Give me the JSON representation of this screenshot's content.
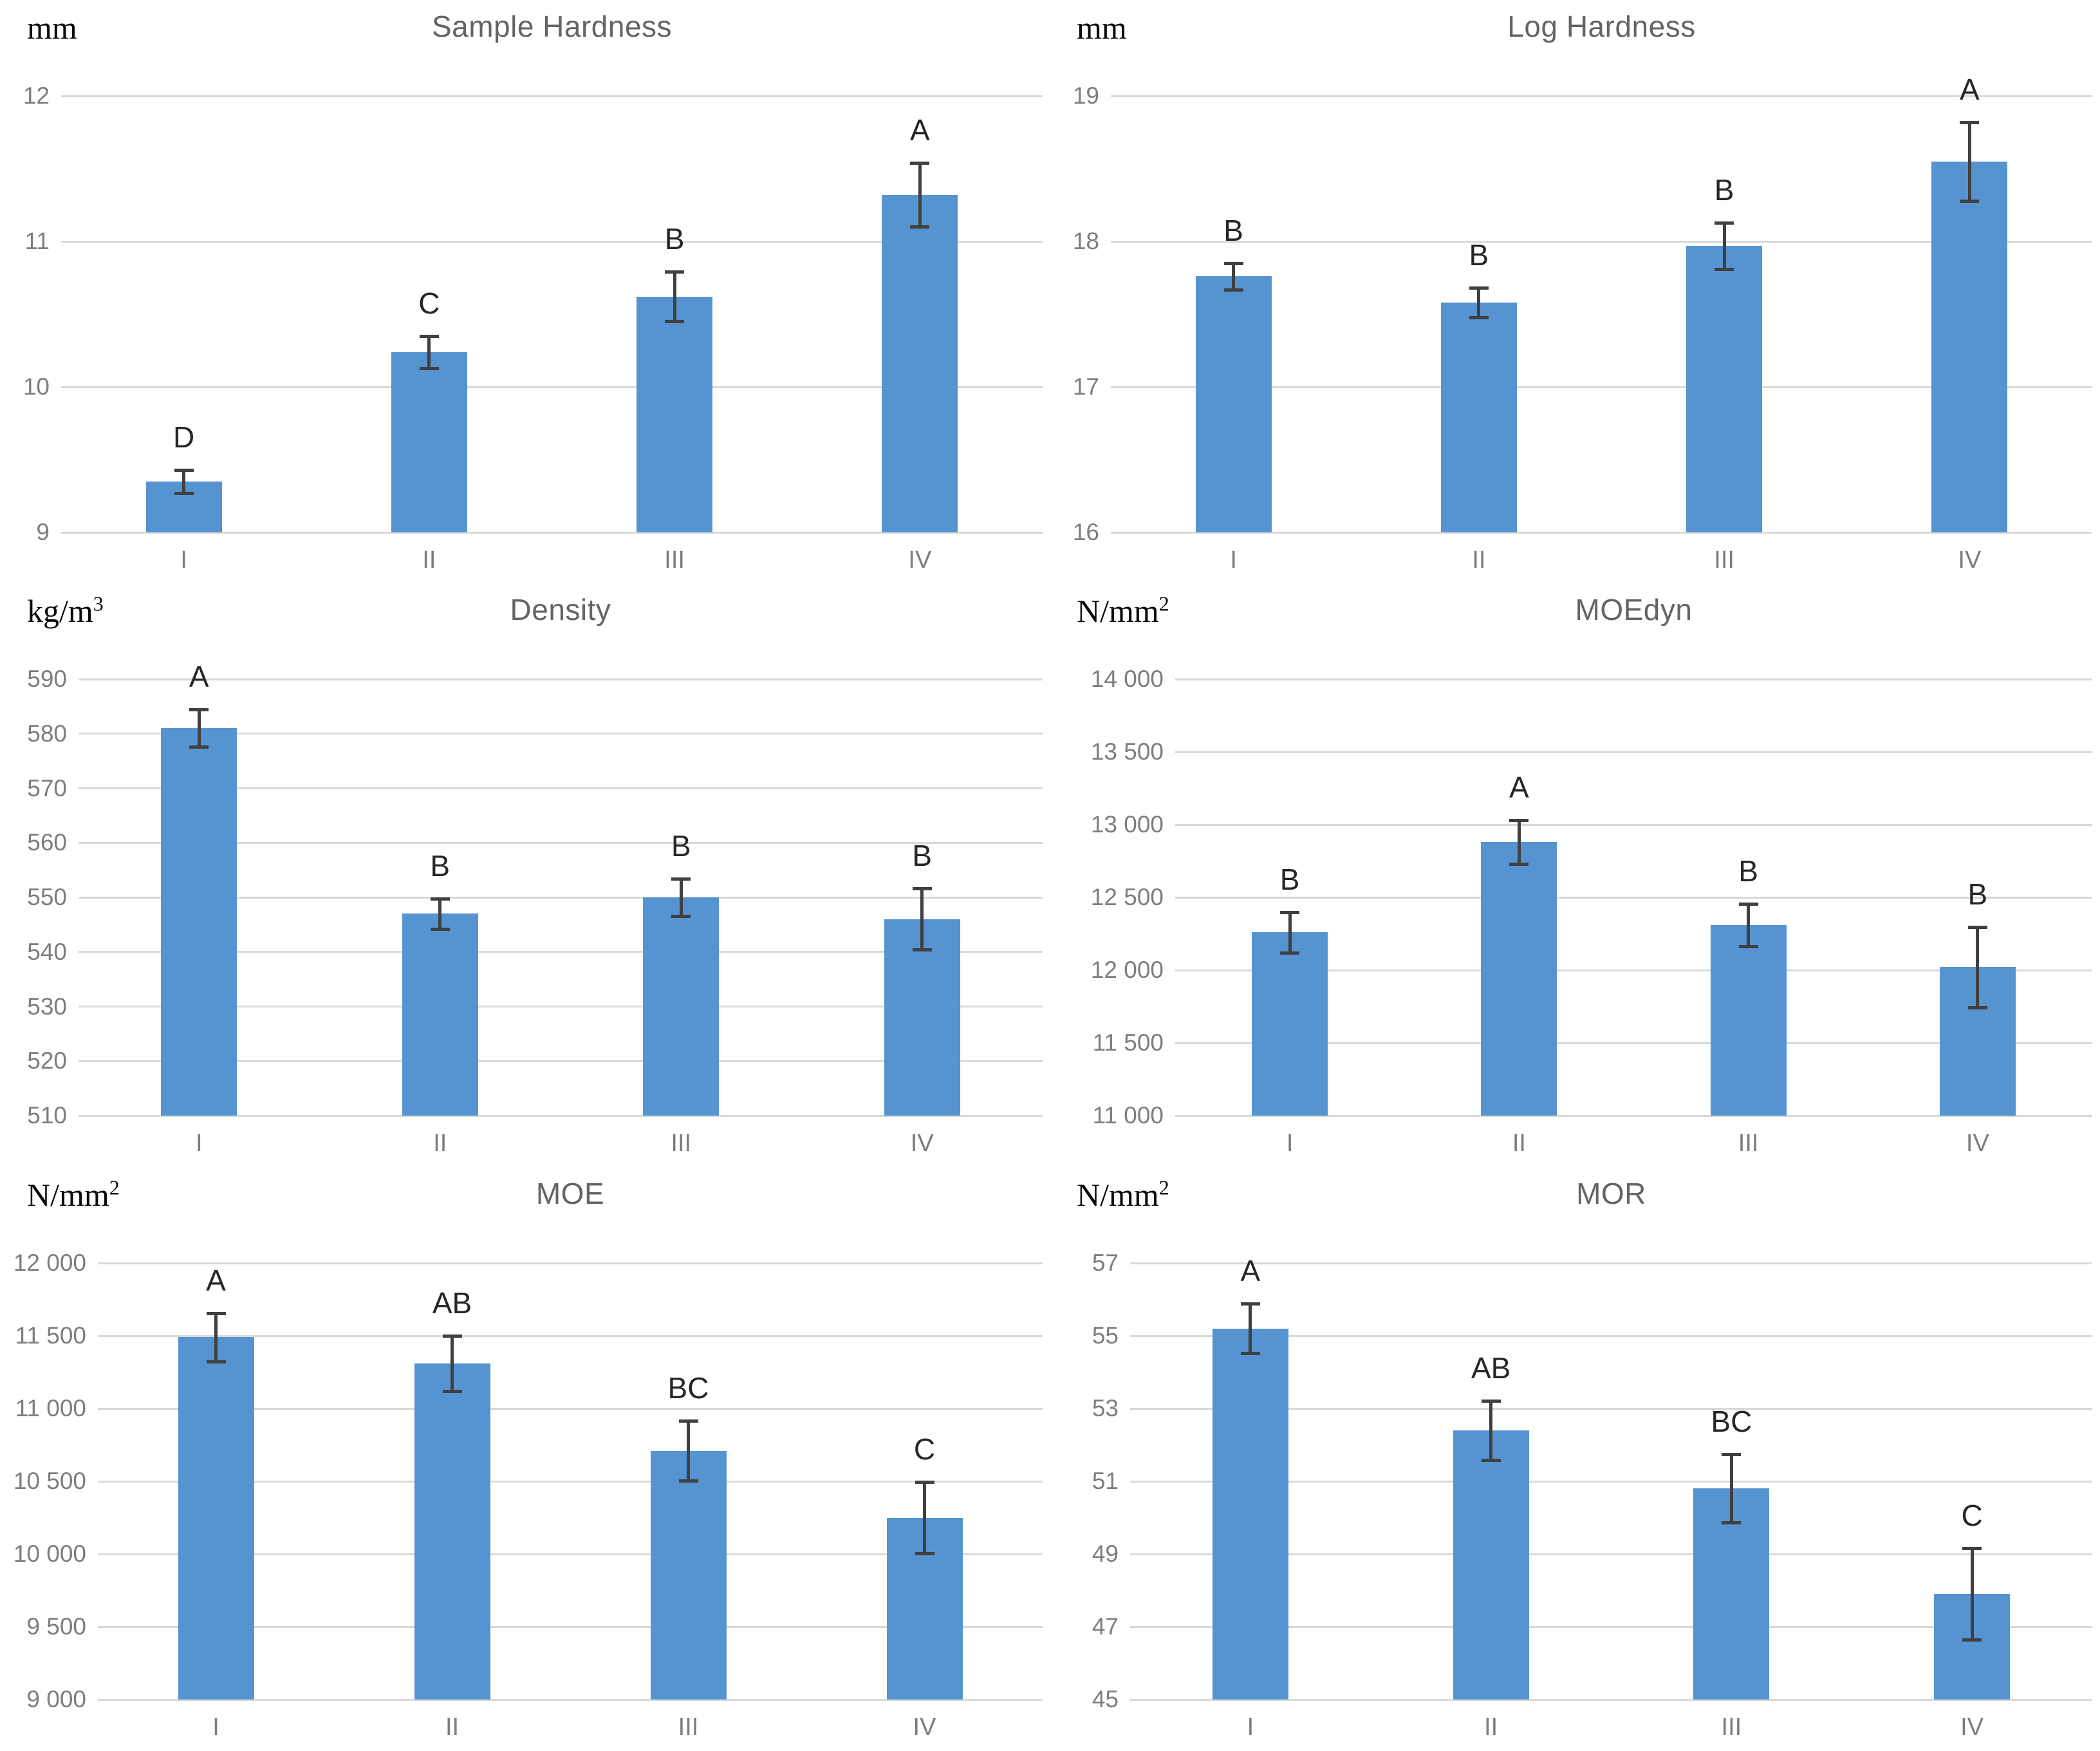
{
  "figure": {
    "background": "#ffffff",
    "colors": {
      "bar_fill": "#5694d1",
      "error_bar": "#404040",
      "gridline": "#d9d9d9",
      "title_text": "#646464",
      "tick_text": "#7d7d7d",
      "letter_text": "#262626",
      "unit_text": "#0a0a0a"
    }
  },
  "chart_data": [
    {
      "type": "bar",
      "title": "Sample Hardness",
      "unit": "mm",
      "unit_sup": "",
      "ylim": [
        9,
        12
      ],
      "yticks": [
        12,
        11,
        10,
        9
      ],
      "ytick_labels": [
        "12",
        "11",
        "10",
        "9"
      ],
      "categories": [
        "I",
        "II",
        "III",
        "IV"
      ],
      "values": [
        9.35,
        10.24,
        10.62,
        11.32
      ],
      "errors": [
        0.08,
        0.11,
        0.17,
        0.22
      ],
      "letters": [
        "D",
        "C",
        "B",
        "A"
      ],
      "grid": true,
      "legend": "none"
    },
    {
      "type": "bar",
      "title": "Log Hardness",
      "unit": "mm",
      "unit_sup": "",
      "ylim": [
        16,
        19
      ],
      "yticks": [
        19,
        18,
        17,
        16
      ],
      "ytick_labels": [
        "19",
        "18",
        "17",
        "16"
      ],
      "categories": [
        "I",
        "II",
        "III",
        "IV"
      ],
      "values": [
        17.76,
        17.58,
        17.97,
        18.55
      ],
      "errors": [
        0.09,
        0.1,
        0.16,
        0.27
      ],
      "letters": [
        "B",
        "B",
        "B",
        "A"
      ],
      "grid": true,
      "legend": "none"
    },
    {
      "type": "bar",
      "title": "Density",
      "unit": "kg/m",
      "unit_sup": "3",
      "ylim": [
        510,
        590
      ],
      "yticks": [
        590,
        580,
        570,
        560,
        550,
        540,
        530,
        520,
        510
      ],
      "ytick_labels": [
        "590",
        "580",
        "570",
        "560",
        "550",
        "540",
        "530",
        "520",
        "510"
      ],
      "categories": [
        "I",
        "II",
        "III",
        "IV"
      ],
      "values": [
        581,
        547,
        550,
        546
      ],
      "errors": [
        3.4,
        2.8,
        3.4,
        5.6
      ],
      "letters": [
        "A",
        "B",
        "B",
        "B"
      ],
      "grid": true,
      "legend": "none"
    },
    {
      "type": "bar",
      "title": "MOEdyn",
      "unit": "N/mm",
      "unit_sup": "2",
      "ylim": [
        11000,
        14000
      ],
      "yticks": [
        14000,
        13500,
        13000,
        12500,
        12000,
        11500,
        11000
      ],
      "ytick_labels": [
        "14 000",
        "13 500",
        "13 000",
        "12 500",
        "12 000",
        "11 500",
        "11 000"
      ],
      "categories": [
        "I",
        "II",
        "III",
        "IV"
      ],
      "values": [
        12260,
        12880,
        12310,
        12020
      ],
      "errors": [
        140,
        150,
        145,
        275
      ],
      "letters": [
        "B",
        "A",
        "B",
        "B"
      ],
      "grid": true,
      "legend": "none"
    },
    {
      "type": "bar",
      "title": "MOE",
      "unit": "N/mm",
      "unit_sup": "2",
      "ylim": [
        9000,
        12000
      ],
      "yticks": [
        12000,
        11500,
        11000,
        10500,
        10000,
        9500,
        9000
      ],
      "ytick_labels": [
        "12 000",
        "11 500",
        "11 000",
        "10 500",
        "10 000",
        "9 500",
        "9 000"
      ],
      "categories": [
        "I",
        "II",
        "III",
        "IV"
      ],
      "values": [
        11490,
        11310,
        10710,
        10250
      ],
      "errors": [
        165,
        190,
        205,
        245
      ],
      "letters": [
        "A",
        "AB",
        "BC",
        "C"
      ],
      "grid": true,
      "legend": "none"
    },
    {
      "type": "bar",
      "title": "MOR",
      "unit": "N/mm",
      "unit_sup": "2",
      "ylim": [
        45,
        57
      ],
      "yticks": [
        57,
        55,
        53,
        51,
        49,
        47,
        45
      ],
      "ytick_labels": [
        "57",
        "55",
        "53",
        "51",
        "49",
        "47",
        "45"
      ],
      "categories": [
        "I",
        "II",
        "III",
        "IV"
      ],
      "values": [
        55.2,
        52.4,
        50.8,
        47.9
      ],
      "errors": [
        0.68,
        0.82,
        0.94,
        1.26
      ],
      "letters": [
        "A",
        "AB",
        "BC",
        "C"
      ],
      "grid": true,
      "legend": "none"
    }
  ]
}
